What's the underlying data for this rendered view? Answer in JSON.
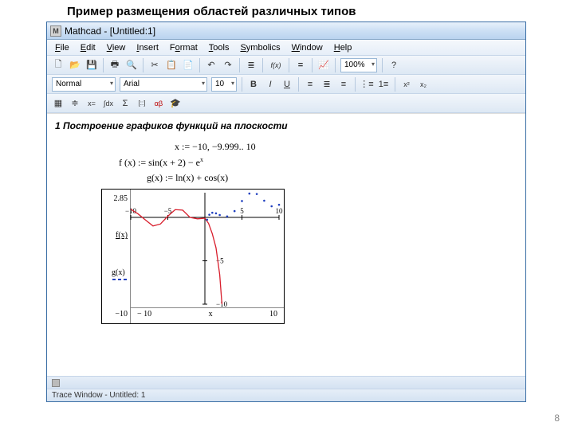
{
  "slide": {
    "title": "Пример размещения областей различных типов",
    "page_num": "8"
  },
  "window": {
    "title": "Mathcad - [Untitled:1]",
    "icon_label": "M"
  },
  "menubar": {
    "items": [
      {
        "label": "File",
        "ul": "F"
      },
      {
        "label": "Edit",
        "ul": "E"
      },
      {
        "label": "View",
        "ul": "V"
      },
      {
        "label": "Insert",
        "ul": "I"
      },
      {
        "label": "Format",
        "ul": "o"
      },
      {
        "label": "Tools",
        "ul": "T"
      },
      {
        "label": "Symbolics",
        "ul": "S"
      },
      {
        "label": "Window",
        "ul": "W"
      },
      {
        "label": "Help",
        "ul": "H"
      }
    ]
  },
  "toolbar1": {
    "new": "🗋",
    "open": "📂",
    "save": "💾",
    "print": "🖶",
    "preview": "🔍",
    "cut": "✂",
    "copy": "📋",
    "paste": "📄",
    "undo": "↶",
    "redo": "↷",
    "align": "≣",
    "fx": "f(x)",
    "equals": "=",
    "graph": "📈",
    "zoom": {
      "value": "100%"
    },
    "help": "?"
  },
  "toolbar2": {
    "style": {
      "value": "Normal"
    },
    "font": {
      "value": "Arial"
    },
    "size": {
      "value": "10"
    },
    "bold": "B",
    "italic": "I",
    "underline": "U",
    "jl": "≡",
    "jc": "≣",
    "jr": "≡",
    "bullets": "⋮≡",
    "numlist": "1≡",
    "sup": "x²",
    "sub": "x₂"
  },
  "toolbar3": {
    "calc": "▦",
    "live": "≑",
    "xeq": "x=",
    "integral": "∫dx",
    "sum": "Σ",
    "matrix": "[::]",
    "alpha": "αβ",
    "grad": "🎓"
  },
  "document": {
    "heading": "1 Построение графиков функций на плоскости",
    "line1": "x := −10, −9.999.. 10",
    "line2_pre": "f (x) := sin(x + 2) − e",
    "line2_exp": "x",
    "line3": "g(x) := ln(x) + cos(x)"
  },
  "plot": {
    "type": "line",
    "xlim": [
      -10,
      10
    ],
    "ylim": [
      -10,
      2.85
    ],
    "ytick_labels": [
      "2.85",
      "f(x)",
      "g(x)",
      "−10"
    ],
    "xtick_labels": [
      "− 10",
      "x",
      "10"
    ],
    "axis_labels_x": [
      "−10",
      "−5",
      "5",
      "10"
    ],
    "axis_labels_y": [
      "−5",
      "−10"
    ],
    "background_color": "#ffffff",
    "axis_color": "#000000",
    "series": [
      {
        "name": "f(x)",
        "color": "#d81e2c",
        "style": "solid",
        "width": 1.3,
        "points": [
          [
            -10,
            0.95
          ],
          [
            -9,
            0.4
          ],
          [
            -8,
            -0.3
          ],
          [
            -7,
            -0.98
          ],
          [
            -6,
            -0.76
          ],
          [
            -5,
            0.14
          ],
          [
            -4,
            0.9
          ],
          [
            -3,
            0.84
          ],
          [
            -2,
            0.0
          ],
          [
            -1,
            -0.16
          ],
          [
            0,
            -0.09
          ],
          [
            0.5,
            -0.7
          ],
          [
            1,
            -1.88
          ],
          [
            1.5,
            -3.5
          ],
          [
            2,
            -6.6
          ],
          [
            2.3,
            -10
          ]
        ]
      },
      {
        "name": "g(x)",
        "color": "#1f3fbf",
        "style": "dotted",
        "width": 1.6,
        "points": [
          [
            0.3,
            -0.26
          ],
          [
            0.6,
            0.31
          ],
          [
            1,
            0.54
          ],
          [
            1.5,
            0.47
          ],
          [
            2,
            0.28
          ],
          [
            3,
            0.11
          ],
          [
            4,
            0.73
          ],
          [
            5,
            1.89
          ],
          [
            6,
            2.75
          ],
          [
            7,
            2.7
          ],
          [
            8,
            1.93
          ],
          [
            9,
            1.29
          ],
          [
            10,
            1.46
          ]
        ]
      }
    ]
  },
  "statusbar": {
    "trace": "Trace Window - Untitled: 1"
  }
}
